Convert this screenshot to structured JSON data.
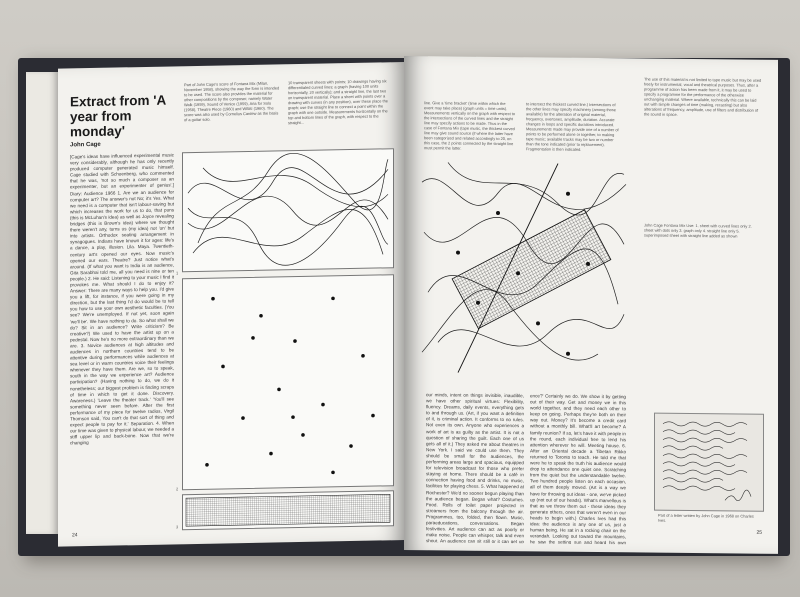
{
  "left_page": {
    "title": "Extract from 'A year from monday'",
    "author": "John Cage",
    "intro_caption": "Part of John Cage's score of Fontana Mix (Milan, November 1958), showing the way the form is intended to be used. The score also provides the material for other compositions by the composer, namely Water Walk (1959), Sound of Venice (1959), Aria for Solo (1958), Theatre Piece (1960) and WBAI (1960). The score was also used by Cornelius Cardew as the basis of a guitar solo.",
    "top_caption": "10 transparent sheets with points; 10 drawings having six differentiated curved lines; a graph (having 100 units horizontally, 20 vertically); and a straight line, the last two on transparent material. Place a sheet with points over a drawing with curves (in any position), over these place the graph; use the straight line to connect a point within the graph with one outside. Measurements horizontally on the top and bottom lines of the graph, with respect to the straight...",
    "body": "[Cage's ideas have influenced experimental music very considerably, although he has only recently produced computer generated music himself. Cage studied with Schoenberg, who commented that he was, 'not so much a composer as an experimenter, but an experimenter of genius'.] Diary: Audience 1966 1. Are we an audience for computer art? The answer's not No; it's Yes. What we need is a computer that isn't labour-saving but which increases the work for us to do, that puns (this is McLuhan's idea) as well as Joyce revealing bridges (this is Brown's idea) where we thought there weren't any, turns us (my idea) not 'on' but into artists. Orthodox seating arrangement in synagogues. Indians have known it for ages: life's a dance, a play, illusion. Lila. Maya. Twentieth-century art's opened our eyes. Now music's opened our ears. Theatre? Just notice what's around. (If what you want is India is an audience, Gita Sarabhai told me, all you need is nine or ten people.) 2. He said: Listening to your music I find it provokes me. What should I do to enjoy it? Answer: There are many ways to help you. I'd give you a lift, for instance, if you were going in my direction, but the last thing I'd do would be to tell you how to use your own aesthetic faculties. (You see? We're unemployed. If not yet, soon again 'we'll be'. We have nothing to do. So what shall we do? Sit in an audience? Write criticism? Be creative?) We used to have the artist up on a pedestal. Now he's no more extraordinary than we are. 3. Novice audiences at high altitudes and audiences in northern countries tend to be attentive during performances while audiences at sea level or in warm countries voice their feelings whenever they have them. Are we, so to speak, south in the way we experience art? Audience participation? (Having nothing to do, we do it nonetheless; our biggest problem is finding scraps of time in which to get it done. Discovery. Awareness.) 'Leave the theater track.' 'You'll see something never seen before. After the first performance of my piece for twelve radios, Virgil Thomson said, You can't do that sort of thing and expect people to pay for it.' Separation. 4. When our time was given to physical labour, we needed a stiff upper lip and back-bone. Now that we're changing",
    "page_number": "24",
    "figure_markers": [
      "1",
      "2",
      "3"
    ]
  },
  "right_page": {
    "top_left_text": "line. Give a 'time bracket' (time within which the event may take place) (graph units = time units). Measurements vertically on the graph with respect to the intersections of the curved lines and the straight line may specify actions to be made. Thus in the case of Fontana Mix (tape music, the thickest curved line may give sound source (if where the latter have been categorized and related accordingly to 20, on this case, the 2 points connected by the straight line must permit the latter.",
    "top_mid_text": "to intersect the thickest curved line.) Intersections of the other lines may specify machinery (among those available) for the alteration of original material, frequency, overtones, amplitude, duration. Accurate changes in loops and specific durations introduced. Measurements made may provide one of a number of points to be performed alone or together, to making tape music; available tracks may be two or number than the tone indicated (prior to replacement). Fragmentation is then indicated.",
    "top_right_text": "The use of this material is not limited to tape music but may be used freely for instrumental, vocal and theatrical purposes. Thus, after a programme of action has been made from it, it may be used to specify a programme for the performance of the otherwise unchanging material. Where available, technically this can be laid out with simple changes of time (making, recasting) but also alterations of frequency, amplitude, use of filters and distribution of the sound in space.",
    "legend_caption": "John Cage Fontana Mix Use: 1. sheet with curved lines only 2. sheet with dots only 3. graph only 4. straight line only 5. superimposed sheet with straight line added as shown",
    "body_left": "our minds, intent on things invisible, inaudible, we have other spiritual virtues: Flexibility, fluency. Dreams, daily events, everything gets to and through us. (Art, if you want a definition of it, is criminal action. It conforms to no rules. Not even its own. Anyone who experiences a work of art is as guilty as the artist. It is not a question of sharing the guilt. Each one of us gets all of it.) They asked me about theatres in New York. I said we could use them. They should be small for the audiences, the performing areas large and spacious, equipped for television broadcast for those who prefer staying at home. There should be a café in connection having food and drinks, no music, facilities for playing chess. 5. What happened at Rochester? We'd no sooner begun playing than the audience began. Began what? Costumes. Food. Rolls of toilet paper projected in streamers from the balcony through the air. Programmes, too, folded, then flown. Music, paraeducations, conversations. Began festivities. Art audience can act as poorly or make noise. People can whisper, talk and even shout. An audience can sit still or it can get up and move around. People are people not plants. 'Do you love the audi-",
    "body_right": "ence?' Certainly we do. We show it by getting out of their way. Get and money we in this world together, and they need each other to keep on going. Perhaps they're both on their way out. Money? It's become a credit card without a monthly bill. What'll art become? A family reunion? If so, let's have it with people in the round, each individual free to lend his attention wherever he will. Meeting house. 6. After an Oriental decade a Tibetan Rikko returned to Toronto to teach. He told me that were he to speak the truth his audience would drop to attendance one quiet one. Scratching from the quiet but the understandable twelve. Two hundred people listen on each occasion, all of them deeply moved. (Art is a way we have for throwing out ideas - one, we've picked up (not out of our heads). What's marvellous is that as we throw them out - these ideas they generate others, ones that weren't even in our heads to begin with.) Charles Ives had this idea: the audience is any one of us, just a human being. He sat in a rocking chair on the verandah. Looking out toward the mountains, he saw the setting sun and heard his own symphony: it's nothing but the sounds happening in the air around him.",
    "letter_caption": "Part of a letter written by John Cage in 1968 on Charles Ives.",
    "page_number": "25"
  },
  "score_marker": "1",
  "colors": {
    "paper": "#f3f2ee",
    "ink": "#1a1a1a",
    "cover": "#2b2c33",
    "table": "#c6c3bd"
  }
}
